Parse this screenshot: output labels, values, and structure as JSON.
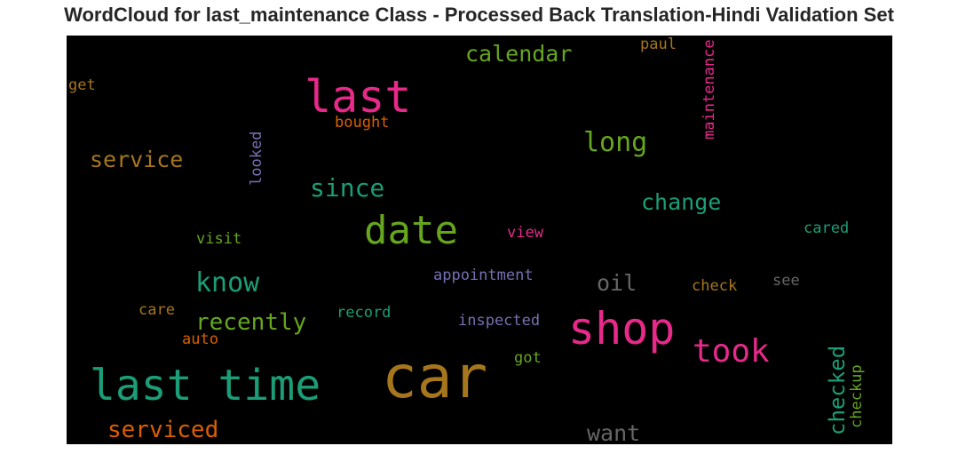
{
  "title": "WordCloud for last_maintenance Class - Processed Back Translation-Hindi Validation Set",
  "palette": {
    "background": "#000000",
    "pink": "#e7298a",
    "teal": "#1b9e77",
    "green": "#66a61e",
    "orange": "#d95f02",
    "gold": "#a6761d",
    "purple": "#7570b3",
    "gray": "#666666"
  },
  "words": {
    "car": "car",
    "last_time": "last time",
    "shop": "shop",
    "last": "last",
    "date": "date",
    "took": "took",
    "since": "since",
    "long": "long",
    "know": "know",
    "recently": "recently",
    "serviced": "serviced",
    "service": "service",
    "calendar": "calendar",
    "change": "change",
    "checked": "checked",
    "want": "want",
    "oil": "oil",
    "maintenance": "maintenance",
    "checkup": "checkup",
    "looked": "looked",
    "bought": "bought",
    "paul": "paul",
    "get": "get",
    "visit": "visit",
    "view": "view",
    "cared": "cared",
    "appointment": "appointment",
    "check": "check",
    "see": "see",
    "care": "care",
    "record": "record",
    "inspected": "inspected",
    "auto": "auto",
    "got": "got"
  }
}
